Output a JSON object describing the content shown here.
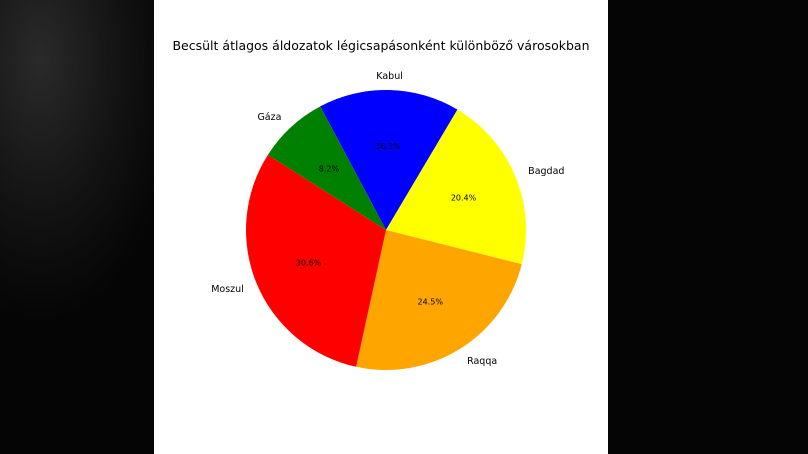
{
  "chart_data": {
    "type": "pie",
    "title": "Becsült átlagos áldozatok légicsapásonként különböző városokban",
    "labels": [
      "Kabul",
      "Bagdad",
      "Raqqa",
      "Moszul",
      "Gáza"
    ],
    "values": [
      16.3,
      20.4,
      24.5,
      30.6,
      8.2
    ],
    "percent_labels": [
      "16.3%",
      "20.4%",
      "24.5%",
      "30.6%",
      "8.2%"
    ],
    "colors": [
      "#0000ff",
      "#ffff00",
      "#ffa500",
      "#ff0000",
      "#008000"
    ],
    "start_angle_deg": 118,
    "direction": "clockwise"
  }
}
